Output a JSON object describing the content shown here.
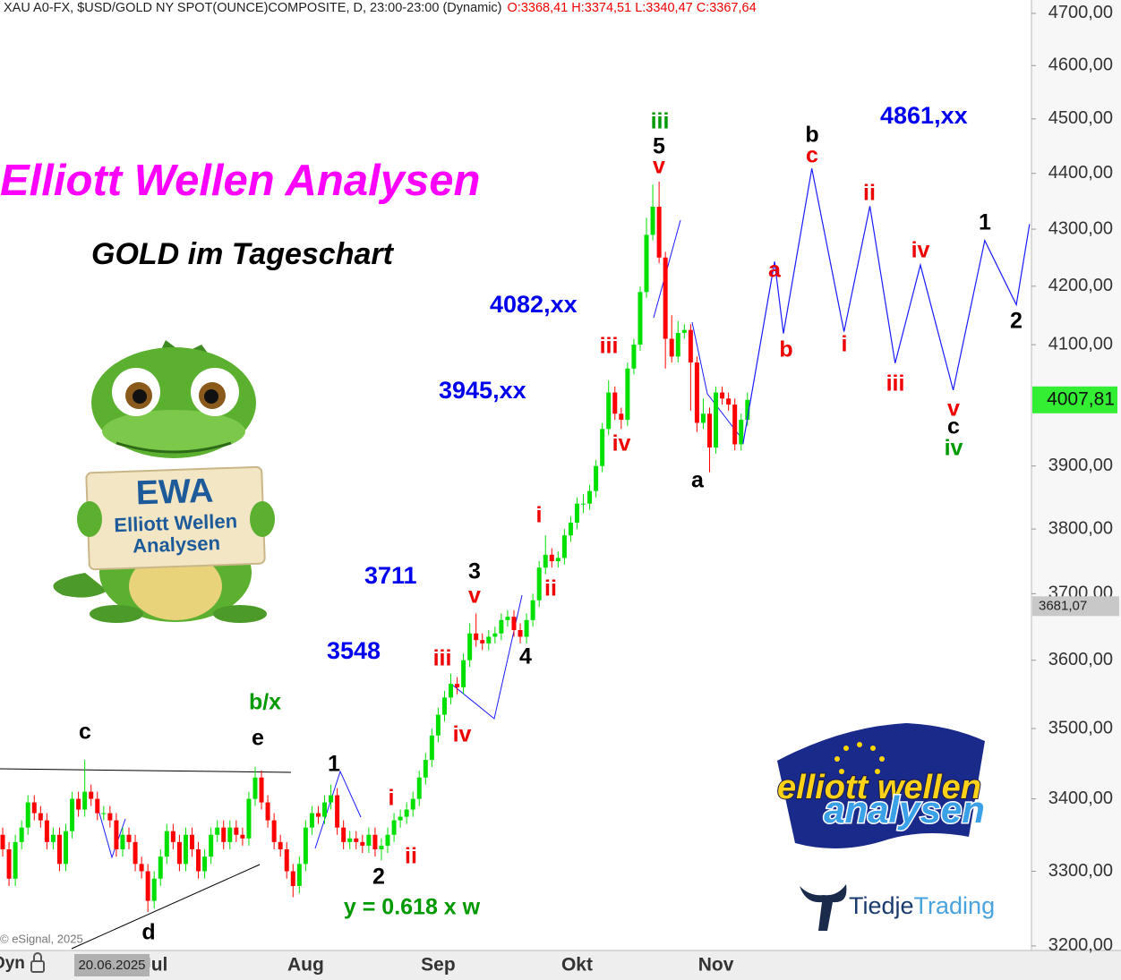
{
  "header": {
    "symbol": "XAU A0-FX, $USD/GOLD NY SPOT(OUNCE)COMPOSITE, D, 23:00-23:00 (Dynamic)",
    "ohlc": "O:3368,41 H:3374,51 L:3340,47 C:3367,64"
  },
  "chart_data": {
    "type": "candlestick",
    "title": "Elliott Wellen Analysen",
    "subtitle": "GOLD im Tageschart",
    "categories": [
      null,
      null,
      null,
      null,
      null,
      null,
      null,
      null,
      null,
      null,
      null,
      null,
      null,
      null,
      null,
      null,
      null,
      null,
      null,
      null,
      null,
      null,
      null,
      null,
      "Jul",
      null,
      null,
      null,
      null,
      null,
      null,
      null,
      null,
      null,
      null,
      null,
      null,
      null,
      null,
      null,
      null,
      null,
      null,
      null,
      null,
      null,
      null,
      null,
      "Aug",
      null,
      null,
      null,
      null,
      null,
      null,
      null,
      null,
      null,
      null,
      null,
      null,
      null,
      null,
      null,
      null,
      null,
      null,
      null,
      null,
      "Sep",
      null,
      null,
      null,
      null,
      null,
      null,
      null,
      null,
      null,
      null,
      null,
      null,
      null,
      null,
      null,
      null,
      null,
      null,
      null,
      null,
      null,
      "Okt",
      null,
      null,
      null,
      null,
      null,
      null,
      null,
      null,
      null,
      null,
      null,
      null,
      null,
      null,
      null,
      null,
      null,
      null,
      null,
      null,
      null,
      "Nov",
      null,
      null,
      null,
      null,
      null
    ],
    "open": [
      3350,
      3330,
      3290,
      3340,
      3360,
      3395,
      3380,
      3370,
      3340,
      3350,
      3310,
      3355,
      3400,
      3385,
      3410,
      3400,
      3380,
      3380,
      3370,
      3330,
      3350,
      3340,
      3310,
      3300,
      3260,
      3290,
      3320,
      3355,
      3340,
      3310,
      3350,
      3330,
      3300,
      3320,
      3350,
      3360,
      3340,
      3360,
      3350,
      3345,
      3400,
      3430,
      3395,
      3370,
      3340,
      3330,
      3300,
      3280,
      3310,
      3360,
      3380,
      3375,
      3395,
      3405,
      3360,
      3340,
      3345,
      3340,
      3335,
      3350,
      3330,
      3335,
      3350,
      3370,
      3375,
      3385,
      3400,
      3430,
      3455,
      3490,
      3520,
      3545,
      3565,
      3560,
      3600,
      3640,
      3630,
      3625,
      3635,
      3640,
      3660,
      3665,
      3645,
      3635,
      3660,
      3690,
      3740,
      3760,
      3750,
      3755,
      3790,
      3810,
      3840,
      3840,
      3860,
      3900,
      3960,
      4020,
      3985,
      3975,
      4060,
      4100,
      4190,
      4290,
      4340,
      4250,
      4110,
      4080,
      4120,
      4125,
      4070,
      3970,
      3985,
      3930,
      4020,
      4010,
      4000,
      3935,
      3975
    ],
    "high": [
      3360,
      3340,
      3350,
      3370,
      3405,
      3405,
      3390,
      3380,
      3360,
      3360,
      3365,
      3410,
      3410,
      3455,
      3420,
      3410,
      3390,
      3390,
      3380,
      3360,
      3360,
      3350,
      3320,
      3310,
      3300,
      3330,
      3365,
      3365,
      3350,
      3360,
      3360,
      3340,
      3330,
      3360,
      3370,
      3370,
      3370,
      3370,
      3360,
      3410,
      3445,
      3440,
      3405,
      3380,
      3350,
      3340,
      3310,
      3320,
      3370,
      3390,
      3390,
      3405,
      3420,
      3415,
      3370,
      3355,
      3355,
      3350,
      3360,
      3360,
      3345,
      3360,
      3380,
      3385,
      3395,
      3410,
      3440,
      3465,
      3500,
      3530,
      3555,
      3580,
      3575,
      3610,
      3655,
      3670,
      3640,
      3645,
      3650,
      3670,
      3675,
      3675,
      3655,
      3670,
      3700,
      3750,
      3790,
      3770,
      3765,
      3800,
      3820,
      3850,
      3855,
      3870,
      3910,
      3970,
      4040,
      4030,
      3995,
      4070,
      4110,
      4200,
      4320,
      4380,
      4385,
      4260,
      4150,
      4140,
      4135,
      4135,
      4080,
      4010,
      3995,
      4030,
      4030,
      4020,
      4010,
      3985,
      4020
    ],
    "low": [
      3320,
      3280,
      3280,
      3330,
      3350,
      3370,
      3360,
      3330,
      3330,
      3300,
      3300,
      3345,
      3375,
      3375,
      3390,
      3370,
      3370,
      3360,
      3320,
      3320,
      3330,
      3300,
      3290,
      3245,
      3250,
      3280,
      3310,
      3330,
      3300,
      3300,
      3320,
      3290,
      3290,
      3310,
      3340,
      3330,
      3330,
      3340,
      3335,
      3335,
      3390,
      3385,
      3360,
      3330,
      3320,
      3290,
      3265,
      3270,
      3300,
      3350,
      3365,
      3365,
      3385,
      3350,
      3330,
      3330,
      3330,
      3325,
      3325,
      3320,
      3315,
      3325,
      3340,
      3360,
      3365,
      3375,
      3390,
      3420,
      3445,
      3480,
      3510,
      3535,
      3550,
      3550,
      3590,
      3620,
      3615,
      3615,
      3625,
      3630,
      3650,
      3635,
      3625,
      3625,
      3650,
      3680,
      3730,
      3740,
      3740,
      3745,
      3780,
      3800,
      3825,
      3830,
      3850,
      3890,
      3950,
      3975,
      3960,
      3965,
      4050,
      4090,
      4180,
      4280,
      4240,
      4060,
      4070,
      4070,
      4110,
      3990,
      3955,
      3960,
      3890,
      3920,
      4000,
      3990,
      3925,
      3925,
      3965
    ],
    "close": [
      3330,
      3290,
      3340,
      3360,
      3395,
      3380,
      3370,
      3340,
      3350,
      3310,
      3355,
      3400,
      3385,
      3410,
      3400,
      3380,
      3380,
      3370,
      3330,
      3350,
      3340,
      3310,
      3300,
      3260,
      3290,
      3320,
      3355,
      3340,
      3310,
      3350,
      3330,
      3300,
      3320,
      3350,
      3360,
      3340,
      3360,
      3350,
      3345,
      3400,
      3430,
      3395,
      3370,
      3340,
      3330,
      3300,
      3280,
      3310,
      3360,
      3380,
      3375,
      3395,
      3405,
      3360,
      3340,
      3345,
      3340,
      3335,
      3350,
      3330,
      3335,
      3350,
      3370,
      3375,
      3385,
      3400,
      3430,
      3455,
      3490,
      3520,
      3545,
      3565,
      3560,
      3600,
      3640,
      3630,
      3625,
      3635,
      3640,
      3660,
      3665,
      3645,
      3635,
      3660,
      3690,
      3740,
      3760,
      3750,
      3755,
      3790,
      3810,
      3840,
      3840,
      3860,
      3900,
      3960,
      4020,
      3985,
      3975,
      4060,
      4100,
      4190,
      4290,
      4340,
      4250,
      4110,
      4080,
      4120,
      4125,
      4070,
      3970,
      3985,
      3930,
      4020,
      4010,
      4000,
      3935,
      3975,
      4007.81
    ],
    "up_color": "#00e000",
    "down_color": "#ff0000",
    "projection": {
      "color": "#1a1aff",
      "x": [
        117.3,
        122.3,
        123.7,
        128.2,
        133.3,
        137.4,
        141.4,
        145.4,
        150.6,
        155.6,
        160.6,
        162.7
      ],
      "values": [
        3936,
        4243,
        4119,
        4409,
        4122,
        4341,
        4069,
        4237,
        4024,
        4280,
        4168,
        4309
      ]
    },
    "xlim": [
      -0.43,
      163.0
    ],
    "ylim": [
      3194,
      4726
    ],
    "log_scale": true,
    "grid": false,
    "yticks": [
      {
        "value": 3200,
        "label": "3200,00"
      },
      {
        "value": 3300,
        "label": "3300,00"
      },
      {
        "value": 3400,
        "label": "3400,00"
      },
      {
        "value": 3500,
        "label": "3500,00"
      },
      {
        "value": 3600,
        "label": "3600,00"
      },
      {
        "value": 3700,
        "label": "3700,00"
      },
      {
        "value": 3800,
        "label": "3800,00"
      },
      {
        "value": 3900,
        "label": "3900,00"
      },
      {
        "value": 4100,
        "label": "4100,00"
      },
      {
        "value": 4200,
        "label": "4200,00"
      },
      {
        "value": 4300,
        "label": "4300,00"
      },
      {
        "value": 4400,
        "label": "4400,00"
      },
      {
        "value": 4500,
        "label": "4500,00"
      },
      {
        "value": 4600,
        "label": "4600,00"
      },
      {
        "value": 4700,
        "label": "4700,00"
      }
    ],
    "last_price_label": "4007,81",
    "last_price_color": "#33ee33",
    "crosshair": {
      "value": 3681.07,
      "label": "3681,07"
    },
    "cursor_date": "20.06.2025",
    "annotations": [
      {
        "text": "iii",
        "color": "#009900"
      },
      {
        "text": "5",
        "color": "#000000"
      },
      {
        "text": "v",
        "color": "#ee0000"
      },
      {
        "text": "b",
        "color": "#000000"
      },
      {
        "text": "c",
        "color": "#ee0000"
      },
      {
        "text": "a",
        "color": "#ee0000"
      },
      {
        "text": "b",
        "color": "#ee0000"
      },
      {
        "text": "ii",
        "color": "#ee0000"
      },
      {
        "text": "i",
        "color": "#ee0000"
      },
      {
        "text": "iv",
        "color": "#ee0000"
      },
      {
        "text": "iii",
        "color": "#ee0000"
      },
      {
        "text": "1",
        "color": "#000000"
      },
      {
        "text": "2",
        "color": "#000000"
      },
      {
        "text": "v",
        "color": "#ee0000"
      },
      {
        "text": "c",
        "color": "#000000"
      },
      {
        "text": "iv",
        "color": "#009900"
      },
      {
        "text": "a",
        "color": "#000000"
      },
      {
        "text": "iii",
        "color": "#ee0000"
      },
      {
        "text": "iv",
        "color": "#ee0000"
      },
      {
        "text": "i",
        "color": "#ee0000"
      },
      {
        "text": "ii",
        "color": "#ee0000"
      },
      {
        "text": "3",
        "color": "#000000"
      },
      {
        "text": "v",
        "color": "#ee0000"
      },
      {
        "text": "4",
        "color": "#000000"
      },
      {
        "text": "iii",
        "color": "#ee0000"
      },
      {
        "text": "iv",
        "color": "#ee0000"
      },
      {
        "text": "i",
        "color": "#ee0000"
      },
      {
        "text": "ii",
        "color": "#ee0000"
      },
      {
        "text": "1",
        "color": "#000000"
      },
      {
        "text": "2",
        "color": "#000000"
      },
      {
        "text": "c",
        "color": "#000000"
      },
      {
        "text": "e",
        "color": "#000000"
      },
      {
        "text": "b/x",
        "color": "#009900"
      },
      {
        "text": "d",
        "color": "#000000"
      },
      {
        "text": "y = 0.618 x w",
        "color": "#009900"
      }
    ],
    "targets": [
      "4861,xx",
      "4082,xx",
      "3945,xx",
      "3711",
      "3548"
    ]
  },
  "footer": {
    "copyright": "© eSignal, 2025",
    "mode": "Dyn"
  },
  "logos": {
    "sign_title": "EWA",
    "sign_line1": "Elliott Wellen",
    "sign_line2": "Analysen",
    "logo_line1": "elliott wellen",
    "logo_line2": "analysen",
    "brand1": "Tiedje",
    "brand2": "Trading"
  }
}
